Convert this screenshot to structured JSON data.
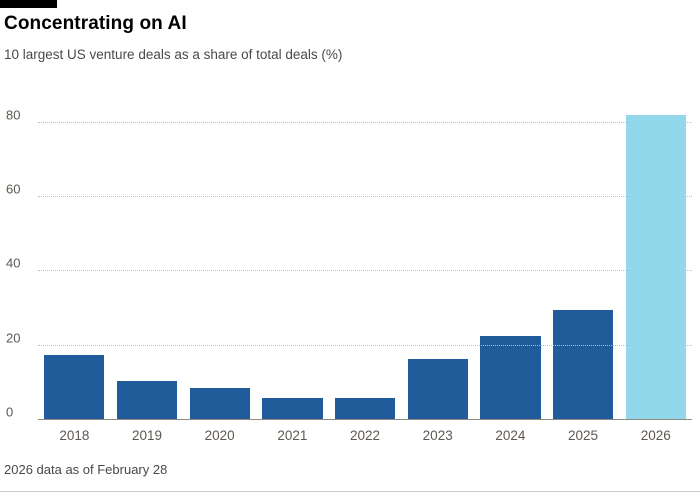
{
  "header": {
    "title": "Concentrating on AI",
    "subtitle": "10 largest US venture deals as a share of total deals (%)"
  },
  "footer": {
    "note": "2026 data as of February 28"
  },
  "chart_data": {
    "type": "bar",
    "title": "Concentrating on AI",
    "subtitle": "10 largest US venture deals as a share of total deals (%)",
    "categories": [
      "2018",
      "2019",
      "2020",
      "2021",
      "2022",
      "2023",
      "2024",
      "2025",
      "2026"
    ],
    "values": [
      17.5,
      10.5,
      8.5,
      6,
      6,
      16.5,
      22.5,
      29.5,
      82
    ],
    "xlabel": "",
    "ylabel": "Share of total deals (%)",
    "ylim": [
      0,
      85
    ],
    "yticks": [
      0,
      20,
      40,
      60,
      80
    ],
    "grid": "horizontal-dotted",
    "legend": "none",
    "bar_color": "#1f5c99",
    "highlight_color": "#93d7ea",
    "highlight_category": "2026",
    "note": "2026 data as of February 28"
  }
}
